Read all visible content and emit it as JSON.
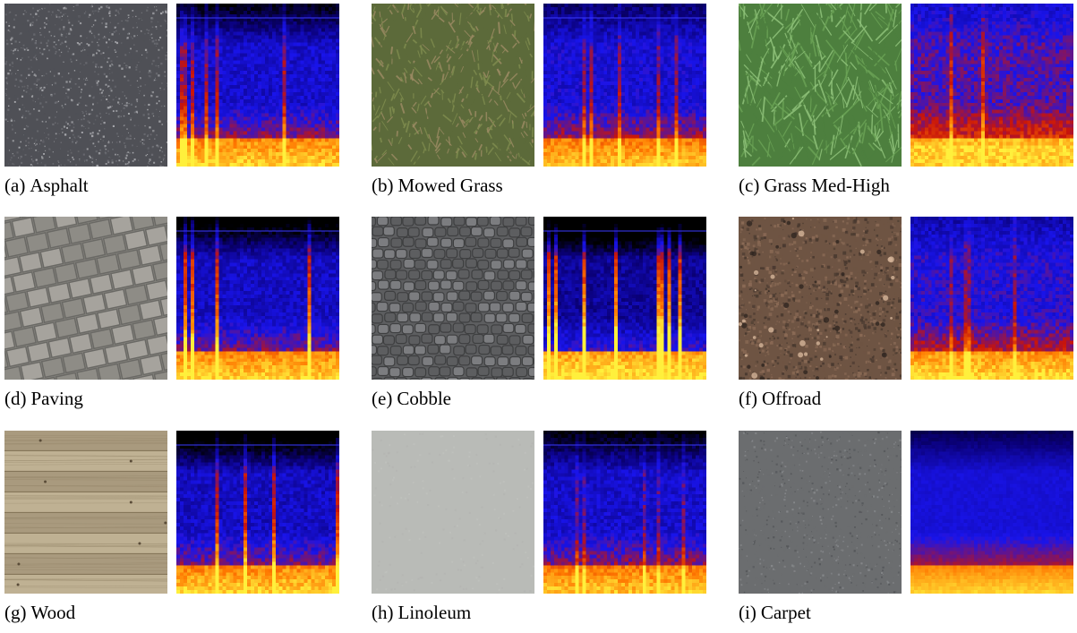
{
  "panels": [
    {
      "tag": "(a)",
      "label": "Asphalt",
      "texture": "asphalt",
      "colors": [
        "#4f5056",
        "#6b6c72",
        "#a8a9ad"
      ],
      "spectrogram": "road"
    },
    {
      "tag": "(b)",
      "label": "Mowed Grass",
      "texture": "mowgrass",
      "colors": [
        "#5c6a3a",
        "#7f8c4e",
        "#9b8a63"
      ],
      "spectrogram": "grass"
    },
    {
      "tag": "(c)",
      "label": "Grass Med-High",
      "texture": "grass",
      "colors": [
        "#4d7f3e",
        "#6aa255",
        "#8fc27a"
      ],
      "spectrogram": "tallgrass"
    },
    {
      "tag": "(d)",
      "label": "Paving",
      "texture": "paving",
      "colors": [
        "#8e8c86",
        "#a6a39d",
        "#6a6965"
      ],
      "spectrogram": "paving"
    },
    {
      "tag": "(e)",
      "label": "Cobble",
      "texture": "cobble",
      "colors": [
        "#5d5e60",
        "#7c7d80",
        "#3e3f40"
      ],
      "spectrogram": "cobble"
    },
    {
      "tag": "(f)",
      "label": "Offroad",
      "texture": "offroad",
      "colors": [
        "#6e5443",
        "#8a6a55",
        "#4a3a30"
      ],
      "spectrogram": "offroad"
    },
    {
      "tag": "(g)",
      "label": "Wood",
      "texture": "wood",
      "colors": [
        "#a99a7e",
        "#bfb193",
        "#857659"
      ],
      "spectrogram": "wood"
    },
    {
      "tag": "(h)",
      "label": "Linoleum",
      "texture": "linoleum",
      "colors": [
        "#b9bbb7",
        "#c6c8c4",
        "#aeb0ac"
      ],
      "spectrogram": "linoleum"
    },
    {
      "tag": "(i)",
      "label": "Carpet",
      "texture": "carpet",
      "colors": [
        "#6b6d6f",
        "#85878a",
        "#55575a"
      ],
      "spectrogram": "carpet"
    }
  ]
}
